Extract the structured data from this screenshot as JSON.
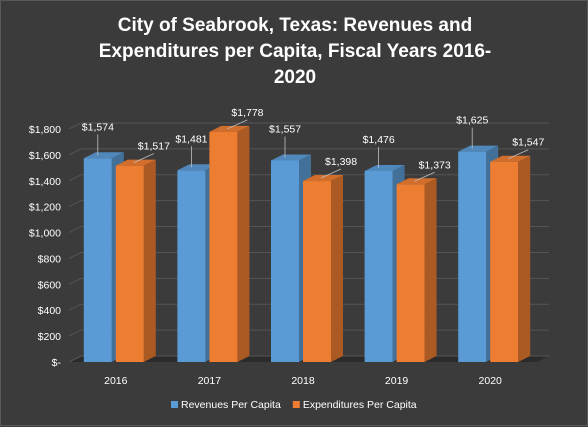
{
  "chart_data": {
    "type": "bar",
    "title_lines": [
      "City of Seabrook, Texas: Revenues and",
      "Expenditures per Capita, Fiscal Years 2016-",
      "2020"
    ],
    "categories": [
      "2016",
      "2017",
      "2018",
      "2019",
      "2020"
    ],
    "series": [
      {
        "name": "Revenues Per Capita",
        "color": "#5b9bd5",
        "values": [
          1574,
          1481,
          1557,
          1476,
          1625
        ],
        "labels": [
          "$1,574",
          "$1,481",
          "$1,557",
          "$1,476",
          "$1,625"
        ]
      },
      {
        "name": "Expenditures Per Capita",
        "color": "#ed7d31",
        "values": [
          1517,
          1778,
          1398,
          1373,
          1547
        ],
        "labels": [
          "$1,517",
          "$1,778",
          "$1,398",
          "$1,373",
          "$1,547"
        ]
      }
    ],
    "ylim": [
      0,
      1800
    ],
    "yticks": [
      {
        "value": 0,
        "label": "$-"
      },
      {
        "value": 200,
        "label": "$200"
      },
      {
        "value": 400,
        "label": "$400"
      },
      {
        "value": 600,
        "label": "$600"
      },
      {
        "value": 800,
        "label": "$800"
      },
      {
        "value": 1000,
        "label": "$1,000"
      },
      {
        "value": 1200,
        "label": "$1,200"
      },
      {
        "value": 1400,
        "label": "$1,400"
      },
      {
        "value": 1600,
        "label": "$1,600"
      },
      {
        "value": 1800,
        "label": "$1,800"
      }
    ],
    "grid": true,
    "legend_position": "bottom",
    "style": "3d-column"
  }
}
